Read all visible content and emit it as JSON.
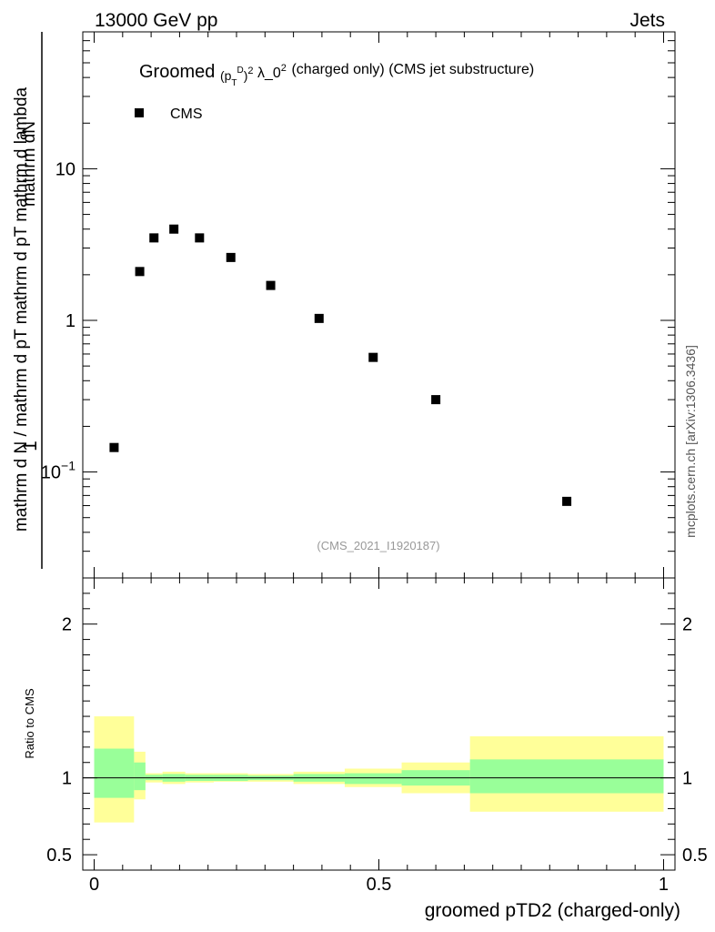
{
  "header": {
    "left": "13000 GeV pp",
    "right": "Jets"
  },
  "side_label": "mcplots.cern.ch [arXiv:1306.3436]",
  "chart_data": [
    {
      "type": "scatter",
      "title": {
        "prefix": "Groomed",
        "formula": "(pTD)2 λ_02",
        "suffix": "(charged only) (CMS jet substructure)"
      },
      "ylabel": {
        "numerator": "mathrm dN",
        "denominator": "mathrm d N / mathrm d pT mathrm d pT mathrm d lambda",
        "prefix": "1"
      },
      "yscale": "log",
      "ylim": [
        0.02,
        80
      ],
      "xlim": [
        -0.02,
        1.02
      ],
      "y_ticks": [
        {
          "value": 0.1,
          "label": "10−1"
        },
        {
          "value": 1,
          "label": "1"
        },
        {
          "value": 10,
          "label": "10"
        }
      ],
      "series": [
        {
          "name": "CMS",
          "marker": "square",
          "color": "#000000",
          "points": [
            {
              "x": 0.035,
              "y": 0.145
            },
            {
              "x": 0.08,
              "y": 2.1
            },
            {
              "x": 0.105,
              "y": 3.5
            },
            {
              "x": 0.14,
              "y": 4.0
            },
            {
              "x": 0.185,
              "y": 3.5
            },
            {
              "x": 0.24,
              "y": 2.6
            },
            {
              "x": 0.31,
              "y": 1.7
            },
            {
              "x": 0.395,
              "y": 1.03
            },
            {
              "x": 0.49,
              "y": 0.57
            },
            {
              "x": 0.6,
              "y": 0.3
            },
            {
              "x": 0.83,
              "y": 0.064
            }
          ]
        }
      ],
      "legend": "top-left",
      "watermark": "(CMS_2021_I1920187)"
    },
    {
      "type": "area",
      "ylabel": "Ratio to CMS",
      "xlabel": "groomed pTD2 (charged-only)",
      "ylim": [
        0.4,
        2.3
      ],
      "xlim": [
        -0.02,
        1.02
      ],
      "x_ticks": [
        {
          "value": 0,
          "label": "0"
        },
        {
          "value": 0.5,
          "label": "0.5"
        },
        {
          "value": 1,
          "label": "1"
        }
      ],
      "y_ticks": [
        {
          "value": 0.5,
          "label": "0.5"
        },
        {
          "value": 1,
          "label": "1"
        },
        {
          "value": 2,
          "label": "2"
        }
      ],
      "reference_line": 1,
      "colors": {
        "stat": "#99ff99",
        "total": "#ffff99"
      },
      "bins": [
        {
          "x0": 0.0,
          "x1": 0.07,
          "stat": [
            0.87,
            1.19
          ],
          "total": [
            0.71,
            1.4
          ]
        },
        {
          "x0": 0.07,
          "x1": 0.09,
          "stat": [
            0.92,
            1.1
          ],
          "total": [
            0.86,
            1.17
          ]
        },
        {
          "x0": 0.09,
          "x1": 0.12,
          "stat": [
            0.985,
            1.02
          ],
          "total": [
            0.97,
            1.03
          ]
        },
        {
          "x0": 0.12,
          "x1": 0.16,
          "stat": [
            0.975,
            1.025
          ],
          "total": [
            0.96,
            1.04
          ]
        },
        {
          "x0": 0.16,
          "x1": 0.21,
          "stat": [
            0.98,
            1.02
          ],
          "total": [
            0.97,
            1.03
          ]
        },
        {
          "x0": 0.21,
          "x1": 0.27,
          "stat": [
            0.98,
            1.02
          ],
          "total": [
            0.975,
            1.03
          ]
        },
        {
          "x0": 0.27,
          "x1": 0.35,
          "stat": [
            0.985,
            1.015
          ],
          "total": [
            0.975,
            1.025
          ]
        },
        {
          "x0": 0.35,
          "x1": 0.44,
          "stat": [
            0.975,
            1.025
          ],
          "total": [
            0.96,
            1.04
          ]
        },
        {
          "x0": 0.44,
          "x1": 0.54,
          "stat": [
            0.96,
            1.03
          ],
          "total": [
            0.94,
            1.06
          ]
        },
        {
          "x0": 0.54,
          "x1": 0.66,
          "stat": [
            0.95,
            1.05
          ],
          "total": [
            0.9,
            1.1
          ]
        },
        {
          "x0": 0.66,
          "x1": 1.0,
          "stat": [
            0.9,
            1.12
          ],
          "total": [
            0.78,
            1.27
          ]
        }
      ]
    }
  ]
}
